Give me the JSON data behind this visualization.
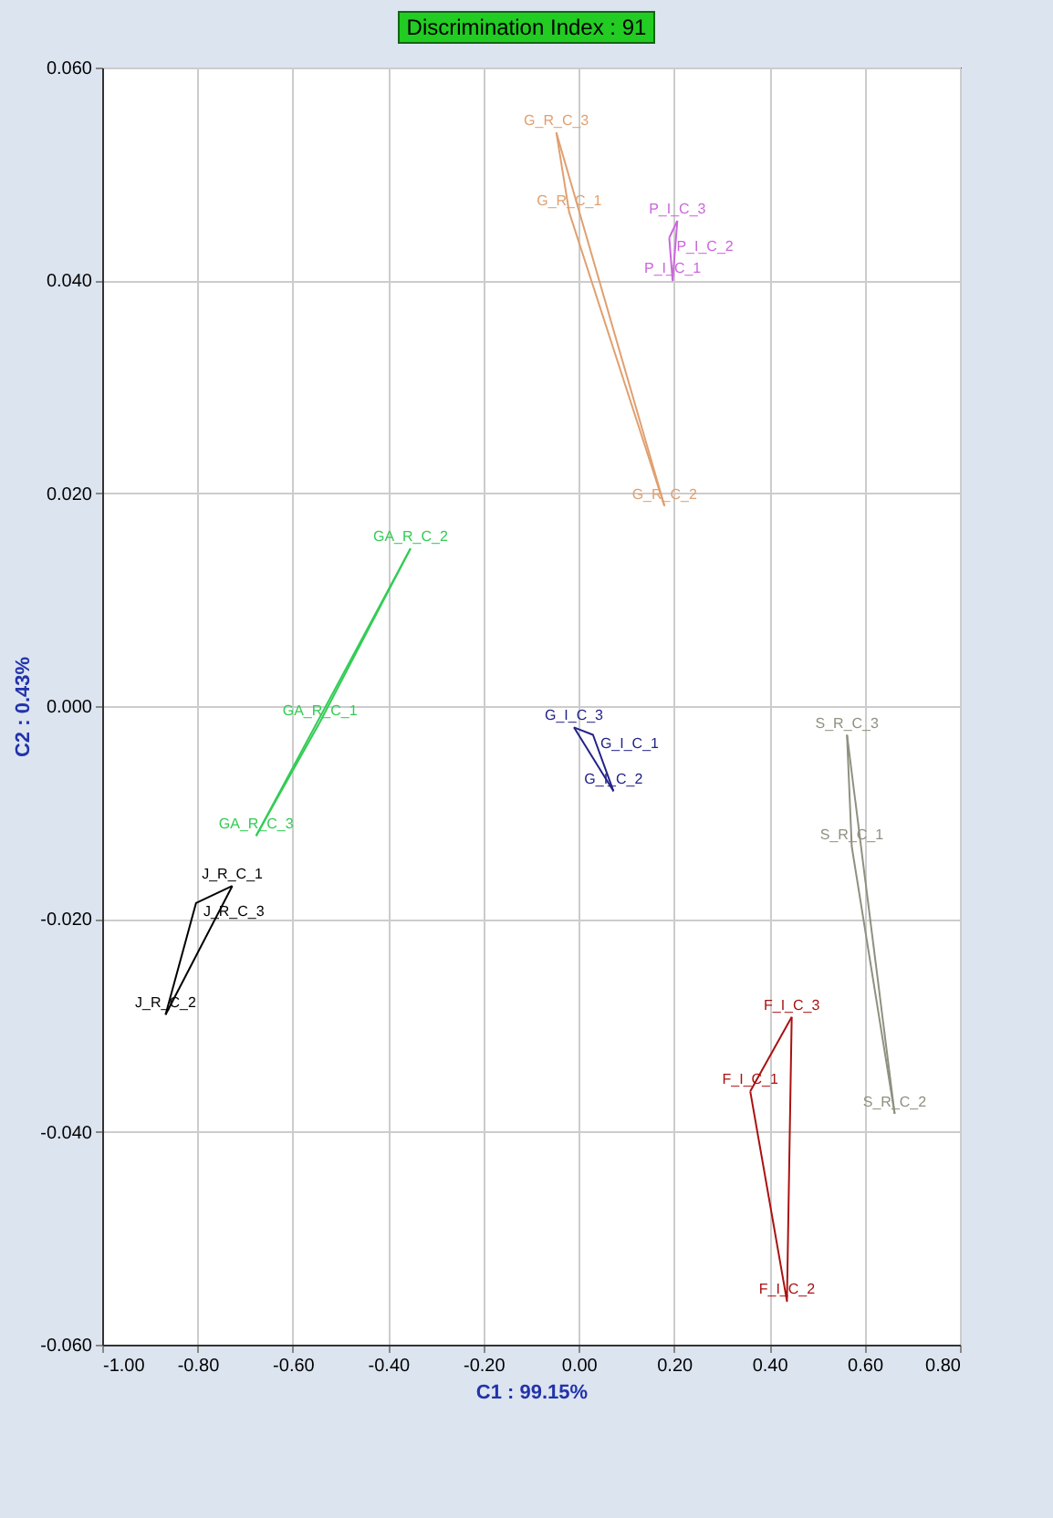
{
  "chart_data": {
    "type": "line",
    "title": "Discrimination Index : 91",
    "xlabel": "C1 : 99.15%",
    "ylabel": "C2 : 0.43%",
    "xlim": [
      -1.0,
      0.8
    ],
    "ylim": [
      -0.06,
      0.06
    ],
    "xticks": [
      {
        "value": -1.0,
        "label": "-1.00"
      },
      {
        "value": -0.8,
        "label": "-0.80"
      },
      {
        "value": -0.6,
        "label": "-0.60"
      },
      {
        "value": -0.4,
        "label": "-0.40"
      },
      {
        "value": -0.2,
        "label": "-0.20"
      },
      {
        "value": 0,
        "label": "0.00"
      },
      {
        "value": 0.2,
        "label": "0.20"
      },
      {
        "value": 0.4,
        "label": "0.40"
      },
      {
        "value": 0.6,
        "label": "0.60"
      },
      {
        "value": 0.8,
        "label": "0.80"
      }
    ],
    "yticks": [
      {
        "value": -0.06,
        "label": "-0.060"
      },
      {
        "value": -0.04,
        "label": "-0.040"
      },
      {
        "value": -0.02,
        "label": "-0.020"
      },
      {
        "value": 0,
        "label": "0.000"
      },
      {
        "value": 0.02,
        "label": "0.020"
      },
      {
        "value": 0.04,
        "label": "0.040"
      },
      {
        "value": 0.06,
        "label": "0.060"
      }
    ],
    "grid": true,
    "legend": false,
    "marker": "none",
    "line_style": "solid",
    "series": [
      {
        "color": "#e0a070",
        "x": [
          -0.047,
          -0.02,
          0.18
        ],
        "values": [
          0.0539,
          0.0464,
          0.0188
        ]
      },
      {
        "color": "#e0a070",
        "x": [
          -0.047,
          0.18
        ],
        "values": [
          0.0539,
          0.0188
        ]
      },
      {
        "color": "#cc66dd",
        "x": [
          0.19,
          0.197,
          0.207
        ],
        "values": [
          0.044,
          0.04,
          0.0456
        ]
      },
      {
        "color": "#cc66dd",
        "x": [
          0.19,
          0.207
        ],
        "values": [
          0.044,
          0.0456
        ]
      },
      {
        "color": "#33cc55",
        "x": [
          -0.677,
          -0.543,
          -0.353
        ],
        "values": [
          -0.0122,
          -0.0015,
          0.0148
        ]
      },
      {
        "color": "#33cc55",
        "x": [
          -0.677,
          -0.353
        ],
        "values": [
          -0.0122,
          0.0148
        ]
      },
      {
        "color": "#000000",
        "x": [
          -0.867,
          -0.803,
          -0.727
        ],
        "values": [
          -0.029,
          -0.0185,
          -0.0169
        ]
      },
      {
        "color": "#000000",
        "x": [
          -0.867,
          -0.727
        ],
        "values": [
          -0.029,
          -0.0169
        ]
      },
      {
        "color": "#222288",
        "x": [
          -0.01,
          0.03,
          0.073
        ],
        "values": [
          -0.002,
          -0.0027,
          -0.008
        ]
      },
      {
        "color": "#222288",
        "x": [
          -0.01,
          0.073
        ],
        "values": [
          -0.002,
          -0.008
        ]
      },
      {
        "color": "#909080",
        "x": [
          0.563,
          0.573,
          0.663
        ],
        "values": [
          -0.0027,
          -0.0132,
          -0.0383
        ]
      },
      {
        "color": "#909080",
        "x": [
          0.563,
          0.663
        ],
        "values": [
          -0.0027,
          -0.0383
        ]
      },
      {
        "color": "#aa1111",
        "x": [
          0.36,
          0.437,
          0.447
        ],
        "values": [
          -0.0362,
          -0.0559,
          -0.0292
        ]
      },
      {
        "color": "#aa1111",
        "x": [
          0.36,
          0.447
        ],
        "values": [
          -0.0362,
          -0.0292
        ]
      }
    ],
    "annotations": [
      {
        "text": "G_R_C_3",
        "x": -0.047,
        "y": 0.0539
      },
      {
        "text": "G_R_C_1",
        "x": -0.02,
        "y": 0.0464
      },
      {
        "text": "G_R_C_2",
        "x": 0.18,
        "y": 0.0188
      },
      {
        "text": "P_I_C_3",
        "x": 0.207,
        "y": 0.0456
      },
      {
        "text": "P_I_C_2",
        "x": 0.19,
        "y": 0.044
      },
      {
        "text": "P_I_C_1",
        "x": 0.197,
        "y": 0.04
      },
      {
        "text": "GA_R_C_2",
        "x": -0.353,
        "y": 0.0148
      },
      {
        "text": "GA_R_C_1",
        "x": -0.543,
        "y": -0.0015
      },
      {
        "text": "GA_R_C_3",
        "x": -0.677,
        "y": -0.0122
      },
      {
        "text": "J_R_C_1",
        "x": -0.727,
        "y": -0.0169
      },
      {
        "text": "J_R_C_3",
        "x": -0.803,
        "y": -0.0185
      },
      {
        "text": "J_R_C_2",
        "x": -0.867,
        "y": -0.029
      },
      {
        "text": "G_I_C_3",
        "x": -0.01,
        "y": -0.002
      },
      {
        "text": "G_I_C_1",
        "x": 0.03,
        "y": -0.0027
      },
      {
        "text": "G_I_C_2",
        "x": 0.073,
        "y": -0.008
      },
      {
        "text": "S_R_C_3",
        "x": 0.563,
        "y": -0.0027
      },
      {
        "text": "S_R_C_1",
        "x": 0.573,
        "y": -0.0132
      },
      {
        "text": "S_R_C_2",
        "x": 0.663,
        "y": -0.0383
      },
      {
        "text": "F_I_C_3",
        "x": 0.447,
        "y": -0.0292
      },
      {
        "text": "F_I_C_1",
        "x": 0.36,
        "y": -0.0362
      },
      {
        "text": "F_I_C_2",
        "x": 0.437,
        "y": -0.0559
      }
    ]
  }
}
